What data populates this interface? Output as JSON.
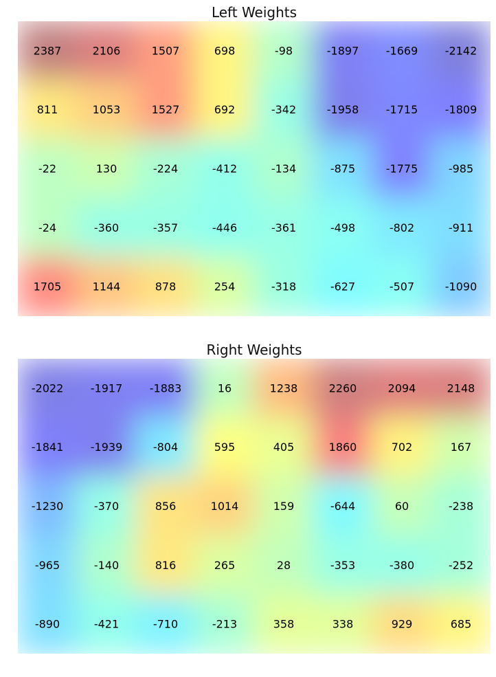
{
  "chart_data": [
    {
      "type": "heatmap",
      "title": "Left Weights",
      "rows": 5,
      "cols": 8,
      "values": [
        [
          2387,
          2106,
          1507,
          698,
          -98,
          -1897,
          -1669,
          -2142
        ],
        [
          811,
          1053,
          1527,
          692,
          -342,
          -1958,
          -1715,
          -1809
        ],
        [
          -22,
          130,
          -224,
          -412,
          -134,
          -875,
          -1775,
          -985
        ],
        [
          -24,
          -360,
          -357,
          -446,
          -361,
          -498,
          -802,
          -911
        ],
        [
          1705,
          1144,
          878,
          254,
          -318,
          -627,
          -507,
          -1090
        ]
      ],
      "colormap": "jet",
      "value_range": [
        -2400,
        2400
      ],
      "xlabel": "",
      "ylabel": ""
    },
    {
      "type": "heatmap",
      "title": "Right Weights",
      "rows": 5,
      "cols": 8,
      "values": [
        [
          -2022,
          -1917,
          -1883,
          16,
          1238,
          2260,
          2094,
          2148
        ],
        [
          -1841,
          -1939,
          -804,
          595,
          405,
          1860,
          702,
          167
        ],
        [
          -1230,
          -370,
          856,
          1014,
          159,
          -644,
          60,
          -238
        ],
        [
          -965,
          -140,
          816,
          265,
          28,
          -353,
          -380,
          -252
        ],
        [
          -890,
          -421,
          -710,
          -213,
          358,
          338,
          929,
          685
        ]
      ],
      "colormap": "jet",
      "value_range": [
        -2400,
        2400
      ],
      "xlabel": "",
      "ylabel": ""
    }
  ]
}
